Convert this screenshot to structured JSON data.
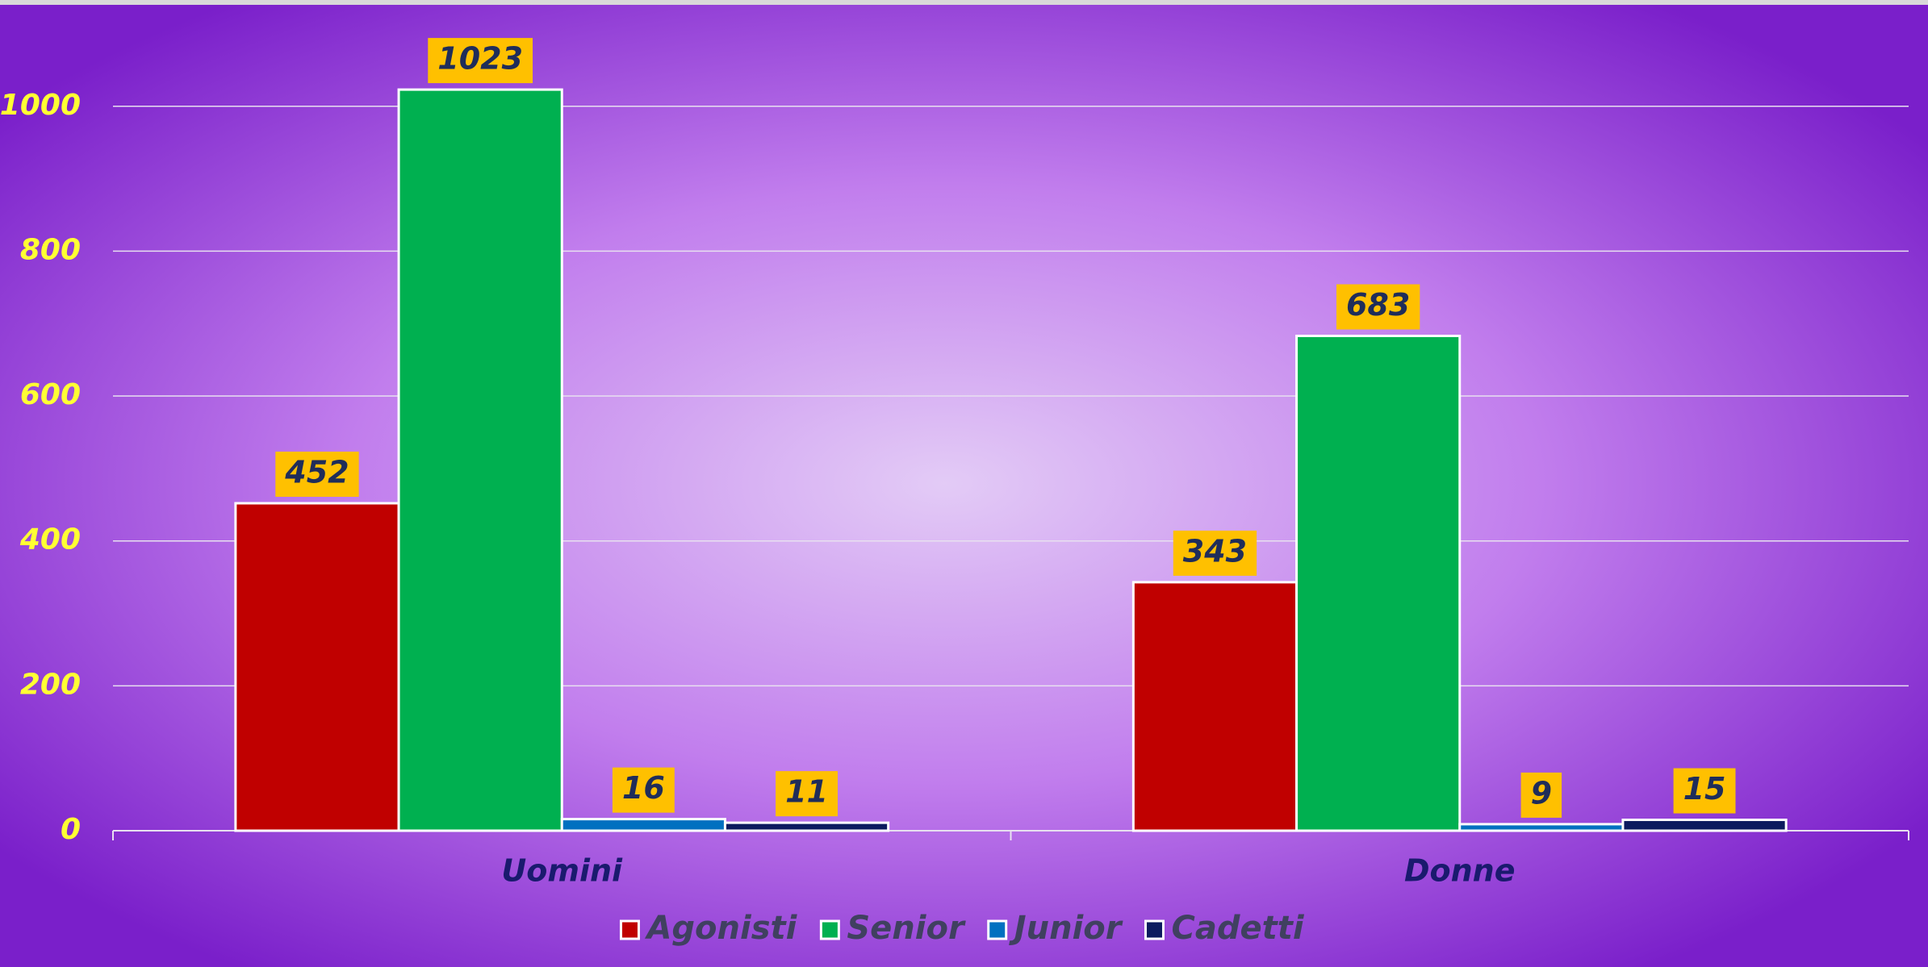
{
  "chart_data": {
    "type": "bar",
    "categories": [
      "Uomini",
      "Donne"
    ],
    "series": [
      {
        "name": "Agonisti",
        "color": "#c00000",
        "values": [
          452,
          343
        ]
      },
      {
        "name": "Senior",
        "color": "#00b050",
        "values": [
          1023,
          683
        ]
      },
      {
        "name": "Junior",
        "color": "#0070c0",
        "values": [
          16,
          9
        ]
      },
      {
        "name": "Cadetti",
        "color": "#0c1a5e",
        "values": [
          11,
          15
        ]
      }
    ],
    "ylim": [
      0,
      1140
    ],
    "yticks": [
      0,
      200,
      400,
      600,
      800,
      1000
    ],
    "grid": true,
    "legend": "bottom"
  }
}
